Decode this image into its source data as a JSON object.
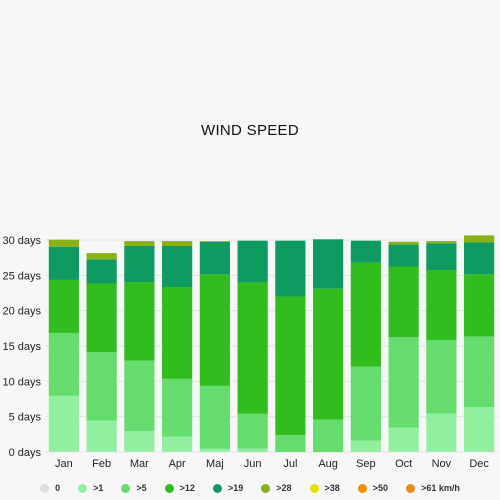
{
  "chart_data": {
    "type": "bar",
    "stacked": true,
    "title": "WIND SPEED",
    "categories": [
      "Jan",
      "Feb",
      "Mar",
      "Apr",
      "Maj",
      "Jun",
      "Jul",
      "Aug",
      "Sep",
      "Oct",
      "Nov",
      "Dec"
    ],
    "ylim": [
      0,
      30
    ],
    "yticks": [
      "0 days",
      "5 days",
      "10 days",
      "15 days",
      "20 days",
      "25 days",
      "30 days"
    ],
    "legend_position": "bottom",
    "series": [
      {
        "name": "0",
        "color": "#dddddd",
        "values": [
          0.05,
          0.05,
          0.05,
          0.05,
          0.05,
          0,
          0,
          0,
          0,
          0.05,
          0.05,
          0.05
        ]
      },
      {
        "name": ">1",
        "color": "#90f0a0",
        "values": [
          7.9,
          4.4,
          2.9,
          2.1,
          0.4,
          0.5,
          0,
          0,
          1.6,
          3.4,
          5.4,
          6.3
        ]
      },
      {
        "name": ">5",
        "color": "#65dd6e",
        "values": [
          8.9,
          9.7,
          10.0,
          8.2,
          8.9,
          4.9,
          2.4,
          4.6,
          10.5,
          12.8,
          10.4,
          10.0
        ]
      },
      {
        "name": ">12",
        "color": "#32bd1e",
        "values": [
          7.5,
          9.7,
          11.1,
          13.0,
          15.8,
          18.6,
          19.6,
          18.5,
          14.7,
          10.0,
          9.9,
          8.8
        ]
      },
      {
        "name": ">19",
        "color": "#0f9a62",
        "values": [
          4.7,
          3.4,
          5.1,
          5.8,
          4.6,
          5.9,
          7.9,
          7.0,
          3.1,
          3.1,
          3.8,
          4.5
        ]
      },
      {
        "name": ">28",
        "color": "#89b218",
        "values": [
          1.0,
          0.9,
          0.7,
          0.7,
          0.1,
          0,
          0,
          0,
          0,
          0.4,
          0.3,
          1.0
        ]
      },
      {
        "name": ">38",
        "color": "#e8e000",
        "values": [
          0,
          0,
          0,
          0,
          0,
          0,
          0,
          0,
          0,
          0,
          0,
          0
        ]
      },
      {
        "name": ">50",
        "color": "#f09000",
        "values": [
          0,
          0,
          0,
          0,
          0,
          0,
          0,
          0,
          0,
          0,
          0,
          0
        ]
      }
    ],
    "legend": [
      {
        "label": "0",
        "color": "#dddddd"
      },
      {
        "label": ">1",
        "color": "#90f0a0"
      },
      {
        "label": ">5",
        "color": "#65dd6e"
      },
      {
        "label": ">12",
        "color": "#32bd1e"
      },
      {
        "label": ">19",
        "color": "#0f9a62"
      },
      {
        "label": ">28",
        "color": "#89b218"
      },
      {
        "label": ">38",
        "color": "#e8e000"
      },
      {
        "label": ">50",
        "color": "#f09000"
      },
      {
        "label": ">61 km/h",
        "color": null
      }
    ]
  }
}
